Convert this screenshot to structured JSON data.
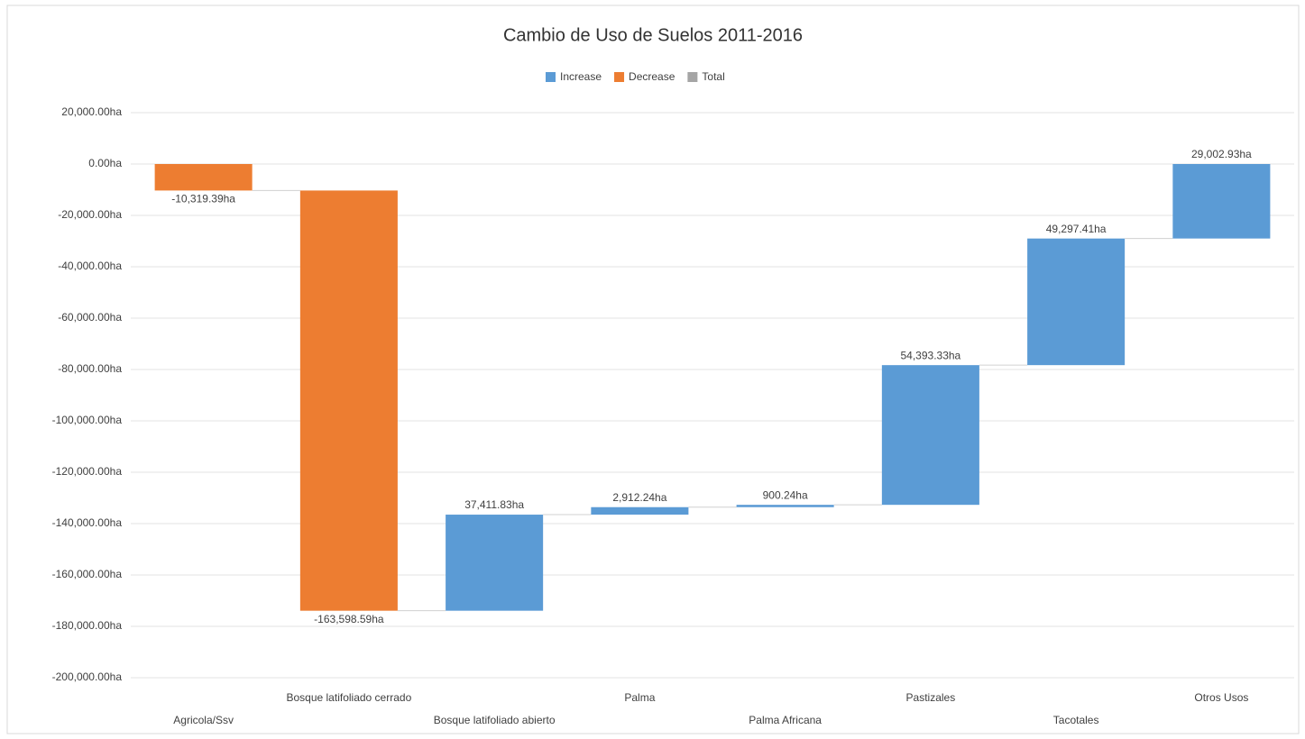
{
  "chart_data": {
    "type": "waterfall",
    "title": "Cambio de Uso de Suelos 2011-2016",
    "legend": [
      {
        "name": "Increase",
        "color": "#5b9bd5"
      },
      {
        "name": "Decrease",
        "color": "#ed7d31"
      },
      {
        "name": "Total",
        "color": "#a5a5a5"
      }
    ],
    "categories": [
      "Agricola/Ssv",
      "Bosque latifoliado cerrado",
      "Bosque latifoliado abierto",
      "Palma",
      "Palma Africana",
      "Pastizales",
      "Tacotales",
      "Otros Usos"
    ],
    "values": [
      -10319.39,
      -163598.59,
      37411.83,
      2912.24,
      900.24,
      54393.33,
      49297.41,
      29002.93
    ],
    "value_labels": [
      "-10,319.39ha",
      "-163,598.59ha",
      "37,411.83ha",
      "2,912.24ha",
      "900.24ha",
      "54,393.33ha",
      "49,297.41ha",
      "29,002.93ha"
    ],
    "ylim": [
      -200000,
      20000
    ],
    "yticks": [
      {
        "value": 20000,
        "label": "20,000.00ha"
      },
      {
        "value": 0,
        "label": "0.00ha"
      },
      {
        "value": -20000,
        "label": "-20,000.00ha"
      },
      {
        "value": -40000,
        "label": "-40,000.00ha"
      },
      {
        "value": -60000,
        "label": "-60,000.00ha"
      },
      {
        "value": -80000,
        "label": "-80,000.00ha"
      },
      {
        "value": -100000,
        "label": "-100,000.00ha"
      },
      {
        "value": -120000,
        "label": "-120,000.00ha"
      },
      {
        "value": -140000,
        "label": "-140,000.00ha"
      },
      {
        "value": -160000,
        "label": "-160,000.00ha"
      },
      {
        "value": -180000,
        "label": "-180,000.00ha"
      },
      {
        "value": -200000,
        "label": "-200,000.00ha"
      }
    ],
    "grid": true
  }
}
